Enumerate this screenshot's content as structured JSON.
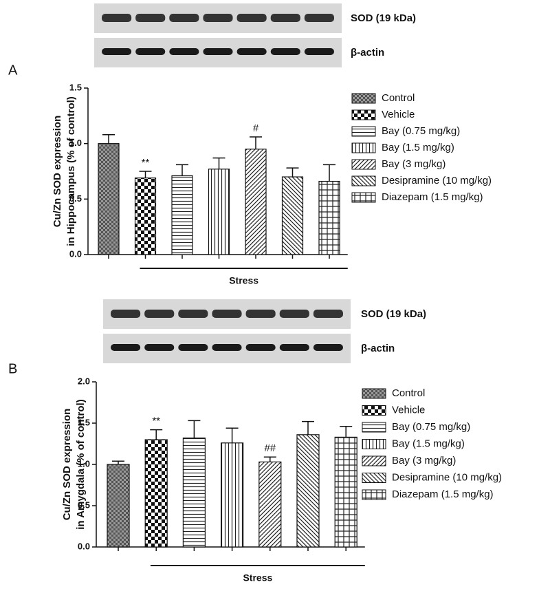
{
  "chart_data": [
    {
      "type": "bar",
      "panel": "A",
      "blot_labels": [
        "SOD (19 kDa)",
        "β-actin"
      ],
      "ylabel": [
        "Cu/Zn SOD expression",
        "in Hippocampus (% of control)"
      ],
      "categories": [
        "Control",
        "Vehicle",
        "Bay (0.75 mg/kg)",
        "Bay (1.5 mg/kg)",
        "Bay (3 mg/kg)",
        "Desipramine (10 mg/kg)",
        "Diazepam (1.5 mg/kg)"
      ],
      "values": [
        1.0,
        0.69,
        0.71,
        0.77,
        0.95,
        0.7,
        0.66
      ],
      "errors": [
        0.08,
        0.06,
        0.1,
        0.1,
        0.11,
        0.08,
        0.15
      ],
      "annotations": [
        null,
        "**",
        null,
        null,
        "#",
        null,
        null
      ],
      "group_label": "Stress",
      "ylim": [
        0,
        1.5
      ],
      "yticks": [
        {
          "value": 0,
          "label": "0.0"
        },
        0.5,
        {
          "value": 1,
          "label": "1.0"
        },
        1.5
      ]
    },
    {
      "type": "bar",
      "panel": "B",
      "blot_labels": [
        "SOD (19 kDa)",
        "β-actin"
      ],
      "ylabel": [
        "Cu/Zn SOD expression",
        "in Amygdala (% of control)"
      ],
      "categories": [
        "Control",
        "Vehicle",
        "Bay (0.75 mg/kg)",
        "Bay (1.5 mg/kg)",
        "Bay (3 mg/kg)",
        "Desipramine (10 mg/kg)",
        "Diazepam (1.5 mg/kg)"
      ],
      "values": [
        1.0,
        1.3,
        1.32,
        1.26,
        1.03,
        1.36,
        1.33
      ],
      "errors": [
        0.04,
        0.12,
        0.21,
        0.18,
        0.06,
        0.16,
        0.13
      ],
      "annotations": [
        null,
        "**",
        null,
        null,
        "##",
        null,
        null
      ],
      "group_label": "Stress",
      "ylim": [
        0,
        2
      ],
      "yticks": [
        {
          "value": 0,
          "label": "0.0"
        },
        0.5,
        {
          "value": 1,
          "label": "1.0"
        },
        1.5,
        {
          "value": 2,
          "label": "2.0"
        }
      ]
    }
  ]
}
